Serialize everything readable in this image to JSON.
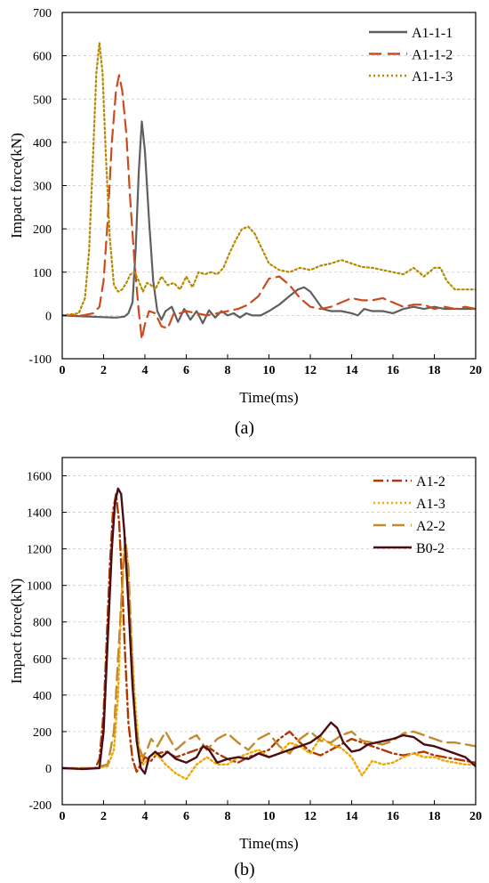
{
  "chart_data": [
    {
      "type": "line",
      "panel_label": "(a)",
      "xlabel": "Time(ms)",
      "ylabel": "Impact force(kN)",
      "xlim": [
        0,
        20
      ],
      "ylim": [
        -100,
        700
      ],
      "xticks": [
        0,
        2,
        4,
        6,
        8,
        10,
        12,
        14,
        16,
        18,
        20
      ],
      "yticks": [
        -100,
        0,
        100,
        200,
        300,
        400,
        500,
        600,
        700
      ],
      "grid": "horizontal",
      "legend": "top-right",
      "series": [
        {
          "name": "A1-1-1",
          "color": "#5f5f5f",
          "dash": "solid",
          "x": [
            0,
            1,
            2,
            2.6,
            3.0,
            3.2,
            3.4,
            3.55,
            3.7,
            3.85,
            4.0,
            4.2,
            4.4,
            4.6,
            4.8,
            5.0,
            5.3,
            5.6,
            5.9,
            6.2,
            6.5,
            6.8,
            7.1,
            7.4,
            7.7,
            8.0,
            8.3,
            8.6,
            8.9,
            9.2,
            9.6,
            10.0,
            10.5,
            11.0,
            11.4,
            11.7,
            12.0,
            12.3,
            12.6,
            13.0,
            13.5,
            14.0,
            14.3,
            14.6,
            15.0,
            15.5,
            16.0,
            16.5,
            17.0,
            17.5,
            18.0,
            18.5,
            19.0,
            19.5,
            20
          ],
          "y": [
            0,
            -2,
            -4,
            -5,
            -3,
            5,
            30,
            150,
            330,
            448,
            380,
            220,
            80,
            10,
            -10,
            10,
            20,
            -15,
            15,
            -10,
            10,
            -18,
            12,
            -5,
            10,
            0,
            5,
            -5,
            5,
            0,
            0,
            10,
            25,
            45,
            60,
            65,
            55,
            35,
            15,
            10,
            10,
            5,
            0,
            15,
            10,
            10,
            5,
            15,
            20,
            15,
            20,
            15,
            15,
            15,
            15
          ]
        },
        {
          "name": "A1-1-2",
          "color": "#cc4b1c",
          "dash": "long-dash",
          "x": [
            0,
            1,
            1.5,
            1.8,
            2.0,
            2.2,
            2.4,
            2.6,
            2.75,
            2.9,
            3.1,
            3.3,
            3.5,
            3.7,
            3.85,
            4.0,
            4.2,
            4.5,
            4.8,
            5.1,
            5.4,
            5.7,
            6.0,
            6.5,
            7.0,
            7.5,
            8.0,
            8.5,
            9.0,
            9.5,
            10.0,
            10.5,
            11.0,
            11.5,
            12.0,
            12.5,
            13.0,
            13.5,
            14.0,
            14.5,
            15.0,
            15.5,
            16.0,
            16.5,
            17.0,
            17.5,
            18.0,
            18.5,
            19.0,
            19.5,
            20
          ],
          "y": [
            0,
            0,
            5,
            20,
            80,
            220,
            400,
            520,
            555,
            520,
            420,
            260,
            120,
            10,
            -55,
            -20,
            10,
            5,
            -25,
            -30,
            5,
            5,
            10,
            5,
            0,
            5,
            10,
            15,
            25,
            45,
            85,
            90,
            70,
            40,
            20,
            15,
            20,
            30,
            40,
            35,
            35,
            40,
            30,
            20,
            25,
            25,
            15,
            20,
            15,
            20,
            15
          ]
        },
        {
          "name": "A1-1-3",
          "color": "#b58a00",
          "dash": "dotted",
          "x": [
            0,
            0.8,
            1.1,
            1.3,
            1.5,
            1.65,
            1.8,
            1.95,
            2.1,
            2.3,
            2.5,
            2.7,
            2.9,
            3.1,
            3.3,
            3.5,
            3.7,
            3.9,
            4.1,
            4.3,
            4.5,
            4.8,
            5.1,
            5.4,
            5.7,
            6.0,
            6.3,
            6.6,
            6.9,
            7.2,
            7.5,
            7.8,
            8.1,
            8.4,
            8.7,
            9.0,
            9.3,
            9.6,
            10.0,
            10.5,
            11.0,
            11.5,
            12.0,
            12.5,
            13.0,
            13.5,
            14.0,
            14.5,
            15.0,
            15.5,
            16.0,
            16.5,
            17.0,
            17.5,
            18.0,
            18.3,
            18.6,
            19.0,
            19.5,
            20
          ],
          "y": [
            0,
            5,
            40,
            150,
            380,
            560,
            630,
            560,
            380,
            180,
            70,
            55,
            60,
            75,
            95,
            100,
            80,
            55,
            75,
            70,
            60,
            90,
            70,
            75,
            60,
            90,
            65,
            100,
            95,
            100,
            95,
            110,
            145,
            175,
            200,
            205,
            190,
            160,
            120,
            105,
            100,
            110,
            105,
            115,
            120,
            128,
            120,
            112,
            110,
            105,
            100,
            95,
            110,
            90,
            110,
            110,
            80,
            60,
            60,
            60
          ]
        }
      ]
    },
    {
      "type": "line",
      "panel_label": "(b)",
      "xlabel": "Time(ms)",
      "ylabel": "Impact force(kN)",
      "xlim": [
        0,
        20
      ],
      "ylim": [
        -200,
        1700
      ],
      "xticks": [
        0,
        2,
        4,
        6,
        8,
        10,
        12,
        14,
        16,
        18,
        20
      ],
      "yticks": [
        -200,
        0,
        200,
        400,
        600,
        800,
        1000,
        1200,
        1400,
        1600
      ],
      "grid": "horizontal",
      "legend": "top-right",
      "series": [
        {
          "name": "A1-2",
          "color": "#b23800",
          "dash": "dash-dot",
          "x": [
            0,
            1,
            1.6,
            1.8,
            2.0,
            2.15,
            2.3,
            2.45,
            2.6,
            2.75,
            2.9,
            3.05,
            3.2,
            3.4,
            3.6,
            3.8,
            4.0,
            4.3,
            4.6,
            5.0,
            5.5,
            6.0,
            6.5,
            7.0,
            7.5,
            8.0,
            8.5,
            9.0,
            9.5,
            10.0,
            10.5,
            11.0,
            11.5,
            12.0,
            12.5,
            13.0,
            13.5,
            14.0,
            14.5,
            15.0,
            15.5,
            16.0,
            16.5,
            17.0,
            17.5,
            18.0,
            18.5,
            19.0,
            19.5,
            20
          ],
          "y": [
            0,
            -5,
            0,
            50,
            300,
            700,
            1100,
            1400,
            1500,
            1350,
            1000,
            600,
            250,
            50,
            -20,
            20,
            60,
            40,
            80,
            90,
            60,
            80,
            100,
            120,
            80,
            50,
            30,
            60,
            80,
            100,
            160,
            200,
            140,
            90,
            70,
            100,
            130,
            160,
            140,
            120,
            100,
            80,
            70,
            80,
            90,
            70,
            60,
            50,
            40,
            30
          ]
        },
        {
          "name": "A1-3",
          "color": "#f0a800",
          "dash": "dotted",
          "x": [
            0,
            1.5,
            2.2,
            2.5,
            2.7,
            2.85,
            3.0,
            3.15,
            3.3,
            3.5,
            3.7,
            3.9,
            4.1,
            4.4,
            4.7,
            5.0,
            5.5,
            6.0,
            6.5,
            7.0,
            7.5,
            8.0,
            8.5,
            9.0,
            9.5,
            10.0,
            10.5,
            11.0,
            11.5,
            12.0,
            12.5,
            13.0,
            13.5,
            14.0,
            14.5,
            15.0,
            15.5,
            16.0,
            16.5,
            17.0,
            17.5,
            18.0,
            18.5,
            19.0,
            19.5,
            20
          ],
          "y": [
            0,
            0,
            10,
            100,
            400,
            900,
            1200,
            1150,
            800,
            400,
            120,
            20,
            40,
            80,
            60,
            20,
            -30,
            -60,
            20,
            60,
            20,
            20,
            60,
            80,
            100,
            60,
            80,
            140,
            120,
            80,
            170,
            130,
            110,
            60,
            -40,
            40,
            20,
            30,
            60,
            80,
            60,
            60,
            40,
            30,
            20,
            20
          ]
        },
        {
          "name": "A2-2",
          "color": "#c48a2c",
          "dash": "long-dash",
          "x": [
            0,
            1.5,
            2.2,
            2.5,
            2.7,
            2.9,
            3.05,
            3.2,
            3.35,
            3.5,
            3.7,
            3.9,
            4.1,
            4.3,
            4.6,
            5.0,
            5.5,
            6.0,
            6.5,
            7.0,
            7.5,
            8.0,
            8.5,
            9.0,
            9.5,
            10.0,
            10.5,
            11.0,
            11.5,
            12.0,
            12.5,
            13.0,
            13.5,
            14.0,
            14.5,
            15.0,
            15.5,
            16.0,
            16.5,
            17.0,
            17.5,
            18.0,
            18.5,
            19.0,
            19.5,
            20
          ],
          "y": [
            0,
            0,
            20,
            200,
            600,
            1000,
            1260,
            1100,
            700,
            300,
            120,
            60,
            100,
            160,
            120,
            200,
            100,
            150,
            180,
            100,
            160,
            190,
            140,
            100,
            160,
            190,
            120,
            80,
            160,
            200,
            150,
            140,
            180,
            200,
            150,
            140,
            130,
            150,
            190,
            200,
            180,
            160,
            140,
            140,
            130,
            120
          ]
        },
        {
          "name": "B0-2",
          "color": "#4a0d14",
          "dash": "solid",
          "x": [
            0,
            1,
            1.8,
            2.0,
            2.2,
            2.4,
            2.55,
            2.7,
            2.85,
            3.0,
            3.2,
            3.4,
            3.6,
            3.8,
            4.0,
            4.2,
            4.5,
            4.8,
            5.1,
            5.5,
            6.0,
            6.5,
            6.8,
            7.1,
            7.5,
            8.0,
            8.5,
            9.0,
            9.5,
            10.0,
            10.5,
            11.0,
            11.5,
            12.0,
            12.5,
            13.0,
            13.3,
            13.6,
            14.0,
            14.4,
            14.8,
            15.2,
            15.6,
            16.0,
            16.5,
            17.0,
            17.5,
            18.0,
            18.5,
            19.0,
            19.5,
            20
          ],
          "y": [
            0,
            -5,
            0,
            200,
            700,
            1200,
            1450,
            1530,
            1500,
            1300,
            900,
            450,
            150,
            0,
            -30,
            60,
            90,
            60,
            90,
            50,
            30,
            60,
            120,
            100,
            30,
            50,
            60,
            50,
            80,
            60,
            80,
            100,
            120,
            140,
            180,
            250,
            220,
            140,
            90,
            100,
            130,
            140,
            150,
            160,
            180,
            170,
            130,
            120,
            100,
            80,
            60,
            10
          ]
        }
      ]
    }
  ]
}
